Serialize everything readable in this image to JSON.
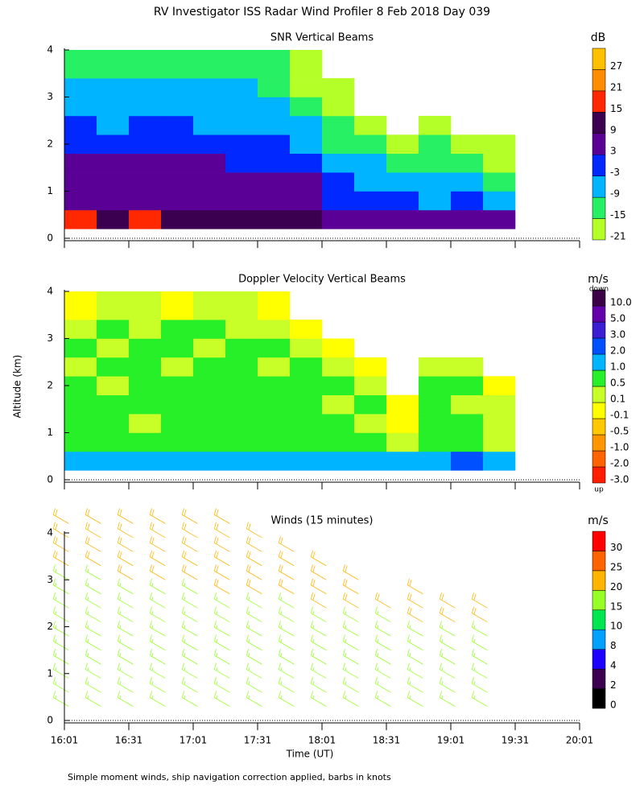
{
  "title": "RV Investigator ISS Radar Wind Profiler    8 Feb 2018 Day 039",
  "y_label": "Altitude (km)",
  "footnote": "Simple moment winds, ship navigation correction applied, barbs in knots",
  "chart_data": [
    {
      "type": "heatmap",
      "title": "SNR Vertical Beams",
      "x": [
        "16:01",
        "16:16",
        "16:31",
        "16:46",
        "17:01",
        "17:16",
        "17:31",
        "17:46",
        "18:01",
        "18:16",
        "18:31",
        "18:46",
        "19:01",
        "19:16",
        "19:31"
      ],
      "y": [
        0.2,
        0.6,
        1.0,
        1.4,
        1.8,
        2.2,
        2.6,
        3.0,
        3.4,
        4.0
      ],
      "values": [
        [
          16,
          12,
          16,
          10,
          14,
          10,
          10,
          9,
          6,
          6,
          6,
          6,
          6,
          6
        ],
        [
          8,
          8,
          7,
          6,
          6,
          5,
          5,
          4,
          2,
          0,
          -2,
          -4,
          -3,
          -8
        ],
        [
          6,
          6,
          5,
          5,
          4,
          3,
          4,
          3,
          0,
          -4,
          -6,
          -4,
          -8,
          -12
        ],
        [
          4,
          4,
          4,
          4,
          3,
          1,
          2,
          0,
          -6,
          -8,
          -12,
          -10,
          -14,
          -18
        ],
        [
          2,
          0,
          1,
          0,
          0,
          -2,
          -2,
          -5,
          -10,
          -12,
          -18,
          -12,
          -18,
          -20
        ],
        [
          -2,
          -4,
          -2,
          -3,
          -4,
          -4,
          -6,
          -9,
          -14,
          -17,
          null,
          -18,
          null,
          null
        ],
        [
          -4,
          -6,
          -4,
          -6,
          -6,
          -6,
          -9,
          -12,
          -18,
          null,
          null,
          null,
          null,
          null
        ],
        [
          -6,
          -8,
          -6,
          -6,
          -9,
          -8,
          -12,
          -16,
          -20,
          null,
          null,
          null,
          null,
          null
        ],
        [
          -12,
          -12,
          -10,
          -10,
          -12,
          -10,
          -14,
          -20,
          null,
          null,
          null,
          null,
          null,
          null
        ]
      ],
      "xlim": [
        "16:01",
        "20:01"
      ],
      "xticks": [
        "16:01",
        "16:31",
        "17:01",
        "17:31",
        "18:01",
        "18:31",
        "19:01",
        "19:31",
        "20:01"
      ],
      "xtick_labels": false,
      "ylim": [
        0,
        4
      ],
      "yticks": [
        0,
        1,
        2,
        3,
        4
      ],
      "colorbar": {
        "label": "dB",
        "levels": [
          -21,
          -15,
          -9,
          -3,
          3,
          9,
          15,
          21,
          27
        ],
        "colors": [
          "#b4ff28",
          "#28f064",
          "#00b4ff",
          "#0028ff",
          "#5a0096",
          "#3c0050",
          "#ff2800",
          "#ff8c00",
          "#ffc000"
        ]
      }
    },
    {
      "type": "heatmap",
      "title": "Doppler Velocity Vertical Beams",
      "x": [
        "16:01",
        "16:16",
        "16:31",
        "16:46",
        "17:01",
        "17:16",
        "17:31",
        "17:46",
        "18:01",
        "18:16",
        "18:31",
        "18:46",
        "19:01",
        "19:16",
        "19:31"
      ],
      "y": [
        0.2,
        0.6,
        1.0,
        1.4,
        1.8,
        2.2,
        2.6,
        3.0,
        3.4,
        4.0
      ],
      "values": [
        [
          1.5,
          1.5,
          1.5,
          1.5,
          1.5,
          1.5,
          1.5,
          1.5,
          1.5,
          1.5,
          1.5,
          1.5,
          2.5,
          1.5
        ],
        [
          0.7,
          0.7,
          0.7,
          0.7,
          0.7,
          0.7,
          0.7,
          0.7,
          0.7,
          0.7,
          0.3,
          0.7,
          0.7,
          0.3
        ],
        [
          0.7,
          0.7,
          0.3,
          0.7,
          0.7,
          0.7,
          0.7,
          0.7,
          0.7,
          0.3,
          -0.05,
          0.7,
          0.7,
          0.3
        ],
        [
          0.7,
          0.7,
          0.7,
          0.7,
          0.7,
          0.7,
          0.7,
          0.7,
          0.3,
          0.7,
          -0.05,
          0.7,
          0.3,
          0.3
        ],
        [
          0.7,
          0.3,
          0.7,
          0.7,
          0.7,
          0.7,
          0.7,
          0.7,
          0.7,
          0.3,
          null,
          0.7,
          0.7,
          -0.05
        ],
        [
          0.3,
          0.7,
          0.7,
          0.3,
          0.7,
          0.7,
          0.3,
          0.7,
          0.3,
          -0.05,
          null,
          0.3,
          0.3,
          null
        ],
        [
          0.7,
          0.3,
          0.7,
          0.7,
          0.3,
          0.7,
          0.7,
          0.3,
          -0.05,
          null,
          null,
          null,
          null,
          null
        ],
        [
          0.3,
          0.7,
          0.3,
          0.7,
          0.7,
          0.3,
          0.3,
          -0.05,
          null,
          null,
          null,
          null,
          null,
          null
        ],
        [
          -0.05,
          0.3,
          0.3,
          -0.05,
          0.3,
          0.3,
          -0.05,
          null,
          null,
          null,
          null,
          null,
          null,
          null
        ]
      ],
      "xlim": [
        "16:01",
        "20:01"
      ],
      "xticks": [
        "16:01",
        "16:31",
        "17:01",
        "17:31",
        "18:01",
        "18:31",
        "19:01",
        "19:31",
        "20:01"
      ],
      "xtick_labels": false,
      "ylim": [
        0,
        4
      ],
      "yticks": [
        0,
        1,
        2,
        3,
        4
      ],
      "colorbar": {
        "label": "m/s",
        "top_label": "down",
        "bottom_label": "up",
        "levels": [
          {
            "value": -3,
            "label": "-3.0"
          },
          {
            "value": -2,
            "label": "-2.0"
          },
          {
            "value": -1,
            "label": "-1.0"
          },
          -0.5,
          -0.1,
          0.1,
          0.5,
          {
            "value": 1,
            "label": "1.0"
          },
          {
            "value": 2,
            "label": "2.0"
          },
          {
            "value": 3,
            "label": "3.0"
          },
          {
            "value": 5,
            "label": "5.0"
          },
          {
            "value": 10,
            "label": "10.0"
          }
        ],
        "colors": [
          "#ff1e00",
          "#ff6400",
          "#ff9600",
          "#ffc800",
          "#ffff00",
          "#c8ff28",
          "#28f028",
          "#00b4ff",
          "#0050ff",
          "#3c1ed2",
          "#6400aa",
          "#3c0046"
        ]
      }
    },
    {
      "type": "barbs",
      "title": "Winds (15 minutes)",
      "x_label": "Time (UT)",
      "x": [
        "16:03",
        "16:18",
        "16:33",
        "16:48",
        "17:03",
        "17:18",
        "17:33",
        "17:48",
        "18:03",
        "18:18",
        "18:33",
        "18:48",
        "19:03",
        "19:18"
      ],
      "y": [
        0.3,
        0.6,
        0.9,
        1.2,
        1.5,
        1.8,
        2.1,
        2.4,
        2.7,
        3.0,
        3.3,
        3.6,
        3.9,
        4.2
      ],
      "direction": 300,
      "values": [
        [
          16,
          16,
          17,
          17,
          17,
          17,
          18,
          18,
          18,
          19,
          21,
          21,
          22,
          22
        ],
        [
          16,
          17,
          17,
          17,
          18,
          18,
          18,
          18,
          19,
          19,
          21,
          22,
          22,
          22
        ],
        [
          16,
          16,
          17,
          17,
          17,
          18,
          18,
          18,
          19,
          20,
          21,
          21,
          22,
          22
        ],
        [
          16,
          16,
          17,
          17,
          17,
          17,
          18,
          18,
          19,
          20,
          21,
          21,
          22,
          22
        ],
        [
          16,
          17,
          17,
          17,
          17,
          18,
          18,
          18,
          19,
          21,
          21,
          22,
          22,
          22
        ],
        [
          16,
          16,
          17,
          17,
          18,
          18,
          18,
          19,
          21,
          21,
          22,
          22,
          22,
          22
        ],
        [
          16,
          16,
          17,
          17,
          17,
          18,
          18,
          19,
          21,
          21,
          22,
          22,
          22,
          null
        ],
        [
          16,
          16,
          17,
          17,
          17,
          18,
          18,
          19,
          21,
          21,
          22,
          22,
          null,
          null
        ],
        [
          16,
          16,
          17,
          17,
          17,
          18,
          19,
          21,
          21,
          22,
          22,
          null,
          null,
          null
        ],
        [
          16,
          16,
          17,
          17,
          17,
          18,
          19,
          21,
          21,
          22,
          null,
          null,
          null,
          null
        ],
        [
          16,
          16,
          17,
          17,
          18,
          18,
          19,
          21,
          null,
          null,
          null,
          null,
          null,
          null
        ],
        [
          16,
          16,
          17,
          17,
          18,
          19,
          21,
          21,
          22,
          null,
          null,
          null,
          null,
          null
        ],
        [
          16,
          16,
          17,
          17,
          18,
          19,
          21,
          21,
          null,
          null,
          null,
          null,
          null,
          null
        ],
        [
          16,
          16,
          17,
          17,
          18,
          19,
          21,
          21,
          null,
          null,
          null,
          null,
          null,
          null
        ]
      ],
      "xlim": [
        "16:01",
        "20:01"
      ],
      "xticks": [
        "16:01",
        "16:31",
        "17:01",
        "17:31",
        "18:01",
        "18:31",
        "19:01",
        "19:31",
        "20:01"
      ],
      "xtick_labels": true,
      "ylim": [
        0,
        4
      ],
      "yticks": [
        0,
        1,
        2,
        3,
        4
      ],
      "colorbar": {
        "label": "m/s",
        "levels": [
          0,
          2,
          4,
          8,
          10,
          15,
          20,
          25,
          30
        ],
        "colors": [
          "#000000",
          "#3c0050",
          "#1e00ff",
          "#00a0ff",
          "#00e650",
          "#96ff28",
          "#ffb400",
          "#ff6400",
          "#ff0000"
        ]
      }
    }
  ]
}
